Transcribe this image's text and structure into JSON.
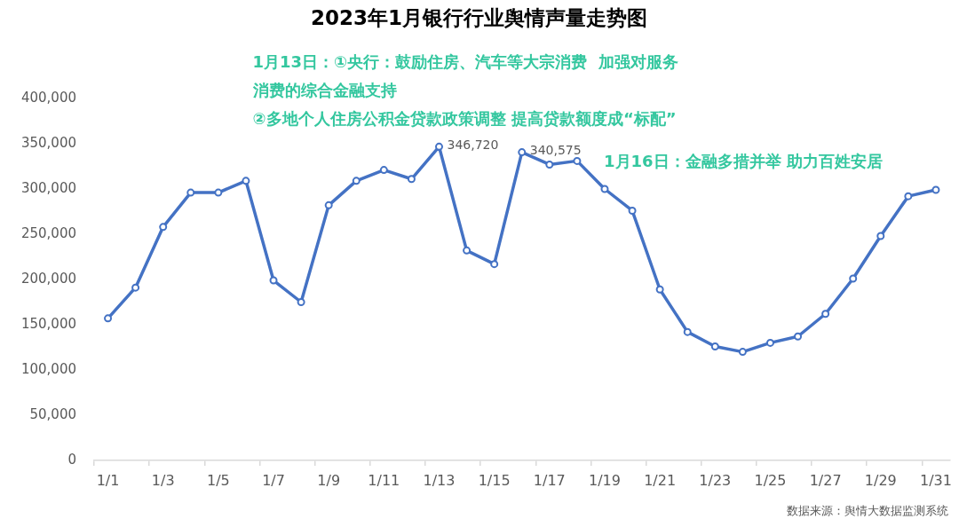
{
  "chart_data": {
    "type": "line",
    "title": "2023年1月银行行业舆情声量走势图",
    "categories": [
      "1/1",
      null,
      "1/3",
      null,
      "1/5",
      null,
      "1/7",
      null,
      "1/9",
      null,
      "1/11",
      null,
      "1/13",
      null,
      "1/15",
      null,
      "1/17",
      null,
      "1/19",
      null,
      "1/21",
      null,
      "1/23",
      null,
      "1/25",
      null,
      "1/27",
      null,
      "1/29",
      null,
      "1/31"
    ],
    "values": [
      157000,
      191000,
      258000,
      296000,
      296000,
      309000,
      199000,
      175000,
      282000,
      309000,
      321000,
      311000,
      346720,
      232000,
      217000,
      340575,
      327000,
      331000,
      300000,
      276000,
      189000,
      142000,
      126000,
      120000,
      130000,
      137000,
      162000,
      201000,
      248000,
      292000,
      299000
    ],
    "value_labels": [
      null,
      null,
      null,
      null,
      null,
      null,
      null,
      null,
      null,
      null,
      null,
      null,
      "346,720",
      null,
      null,
      "340,575",
      null,
      null,
      null,
      null,
      null,
      null,
      null,
      null,
      null,
      null,
      null,
      null,
      null,
      null,
      null
    ],
    "color": "#4472c4",
    "ylim": [
      0,
      400000
    ],
    "yticks": [
      {
        "value": 0,
        "label": "0"
      },
      {
        "value": 50000,
        "label": "50,000"
      },
      {
        "value": 100000,
        "label": "100,000"
      },
      {
        "value": 150000,
        "label": "150,000"
      },
      {
        "value": 200000,
        "label": "200,000"
      },
      {
        "value": 250000,
        "label": "250,000"
      },
      {
        "value": 300000,
        "label": "300,000"
      },
      {
        "value": 350000,
        "label": "350,000"
      },
      {
        "value": 400000,
        "label": "400,000"
      }
    ],
    "grid": false,
    "legend": false,
    "marker": "circle",
    "line_style": "solid",
    "annotations": [
      {
        "text": "1月13日：①央行：鼓励住房、汽车等大宗消费  加强对服务消费的综合金融支持\n②多地个人住房公积金贷款政策调整 提高贷款额度成“标配”",
        "x": "1/13",
        "y": 346720
      },
      "1月16日：金融多措并举 助力百姓安居",
      "数据来源：舆情大数据监测系统"
    ]
  }
}
